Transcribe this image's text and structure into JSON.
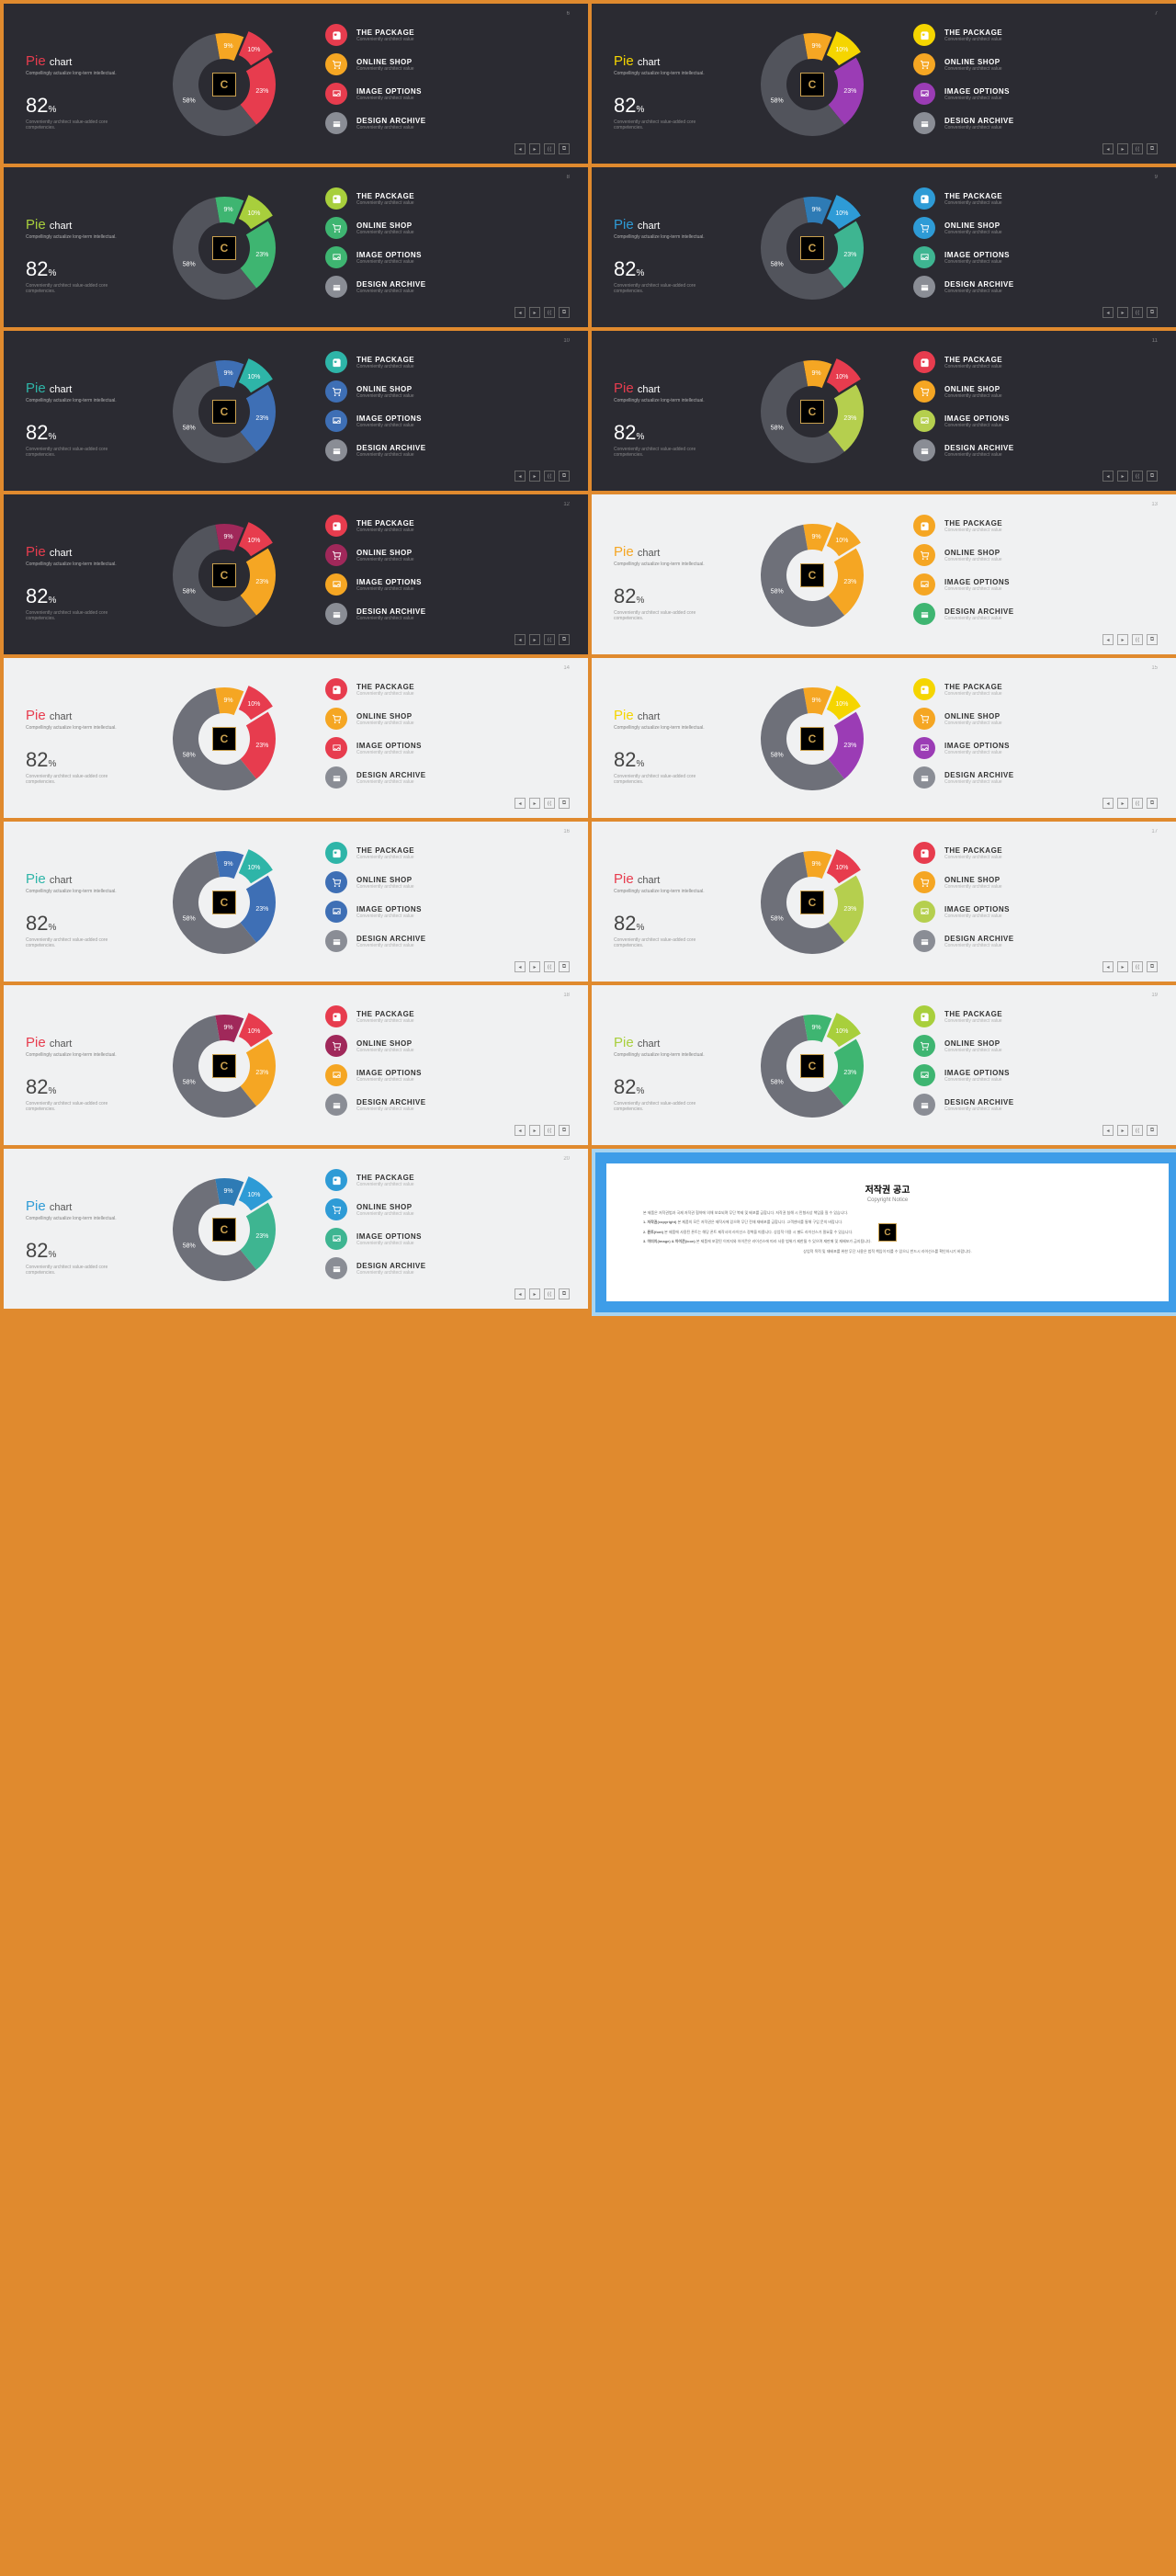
{
  "common": {
    "title_main": "Pie",
    "title_sub": "chart",
    "subtitle": "Compellingly actualize long-term intellectual.",
    "stat_num": "82",
    "stat_pct": "%",
    "stat_desc": "Conveniently architect value-added core competencies.",
    "legend_sub": "Conveniently architect value",
    "legends": [
      "THE PACKAGE",
      "ONLINE SHOP",
      "IMAGE OPTIONS",
      "DESIGN ARCHIVE"
    ],
    "nav": [
      "◂",
      "▸",
      "⟨⟨",
      "⧉"
    ],
    "segments": {
      "values": [
        58,
        23,
        10,
        9
      ],
      "labels": [
        "58%",
        "23%",
        "10%",
        "9%"
      ]
    },
    "center_logo": "C",
    "cp_title": "저작권 공고",
    "cp_sub": "Copyright Notice"
  },
  "slides": [
    {
      "bg": "dark",
      "accent": "#e73c4e",
      "seg": [
        "#52545c",
        "#e73c4e",
        "#e73c4e",
        "#f5a623"
      ],
      "legend_c": [
        "#e73c4e",
        "#f5a623",
        "#e73c4e",
        "#8a8d95"
      ],
      "pg": "6"
    },
    {
      "bg": "dark",
      "accent": "#f5d500",
      "seg": [
        "#52545c",
        "#9b3cb5",
        "#f5d500",
        "#f5a623"
      ],
      "legend_c": [
        "#f5d500",
        "#f5a623",
        "#9b3cb5",
        "#8a8d95"
      ],
      "pg": "7"
    },
    {
      "bg": "dark",
      "accent": "#a8cf3c",
      "seg": [
        "#52545c",
        "#3eb571",
        "#a8cf3c",
        "#3eb571"
      ],
      "legend_c": [
        "#a8cf3c",
        "#3eb571",
        "#3eb571",
        "#8a8d95"
      ],
      "pg": "8"
    },
    {
      "bg": "dark",
      "accent": "#2e9bd6",
      "seg": [
        "#52545c",
        "#3eb591",
        "#2e9bd6",
        "#2e7bb5"
      ],
      "legend_c": [
        "#2e9bd6",
        "#2e9bd6",
        "#3eb591",
        "#8a8d95"
      ],
      "pg": "9"
    },
    {
      "bg": "dark",
      "accent": "#2eb5a8",
      "seg": [
        "#52545c",
        "#3e6fb5",
        "#2eb5a8",
        "#3e6fb5"
      ],
      "legend_c": [
        "#2eb5a8",
        "#3e6fb5",
        "#3e6fb5",
        "#8a8d95"
      ],
      "pg": "10"
    },
    {
      "bg": "dark",
      "accent": "#e73c4e",
      "seg": [
        "#52545c",
        "#b5cf4e",
        "#e73c4e",
        "#f5a623"
      ],
      "legend_c": [
        "#e73c4e",
        "#f5a623",
        "#b5cf4e",
        "#8a8d95"
      ],
      "pg": "11"
    },
    {
      "bg": "dark",
      "accent": "#e73c4e",
      "seg": [
        "#52545c",
        "#f5a623",
        "#e73c4e",
        "#a0285a"
      ],
      "legend_c": [
        "#e73c4e",
        "#a0285a",
        "#f5a623",
        "#8a8d95"
      ],
      "pg": "12"
    },
    {
      "bg": "light",
      "accent": "#f5a623",
      "seg": [
        "#6e7079",
        "#f5a623",
        "#f5a623",
        "#f5a623"
      ],
      "legend_c": [
        "#f5a623",
        "#f5a623",
        "#f5a623",
        "#3eb571"
      ],
      "pg": "13"
    },
    {
      "bg": "light",
      "accent": "#e73c4e",
      "seg": [
        "#6e7079",
        "#e73c4e",
        "#e73c4e",
        "#f5a623"
      ],
      "legend_c": [
        "#e73c4e",
        "#f5a623",
        "#e73c4e",
        "#8a8d95"
      ],
      "pg": "14"
    },
    {
      "bg": "light",
      "accent": "#f5d500",
      "seg": [
        "#6e7079",
        "#9b3cb5",
        "#f5d500",
        "#f5a623"
      ],
      "legend_c": [
        "#f5d500",
        "#f5a623",
        "#9b3cb5",
        "#8a8d95"
      ],
      "pg": "15"
    },
    {
      "bg": "light",
      "accent": "#2eb5a8",
      "seg": [
        "#6e7079",
        "#3e6fb5",
        "#2eb5a8",
        "#3e6fb5"
      ],
      "legend_c": [
        "#2eb5a8",
        "#3e6fb5",
        "#3e6fb5",
        "#8a8d95"
      ],
      "pg": "16"
    },
    {
      "bg": "light",
      "accent": "#e73c4e",
      "seg": [
        "#6e7079",
        "#b5cf4e",
        "#e73c4e",
        "#f5a623"
      ],
      "legend_c": [
        "#e73c4e",
        "#f5a623",
        "#b5cf4e",
        "#8a8d95"
      ],
      "pg": "17"
    },
    {
      "bg": "light",
      "accent": "#e73c4e",
      "seg": [
        "#6e7079",
        "#f5a623",
        "#e73c4e",
        "#a0285a"
      ],
      "legend_c": [
        "#e73c4e",
        "#a0285a",
        "#f5a623",
        "#8a8d95"
      ],
      "pg": "18"
    },
    {
      "bg": "light",
      "accent": "#a8cf3c",
      "seg": [
        "#6e7079",
        "#3eb571",
        "#a8cf3c",
        "#3eb571"
      ],
      "legend_c": [
        "#a8cf3c",
        "#3eb571",
        "#3eb571",
        "#8a8d95"
      ],
      "pg": "19"
    },
    {
      "bg": "light",
      "accent": "#2e9bd6",
      "seg": [
        "#6e7079",
        "#3eb591",
        "#2e9bd6",
        "#2e7bb5"
      ],
      "legend_c": [
        "#2e9bd6",
        "#2e9bd6",
        "#3eb591",
        "#8a8d95"
      ],
      "pg": "20"
    }
  ]
}
